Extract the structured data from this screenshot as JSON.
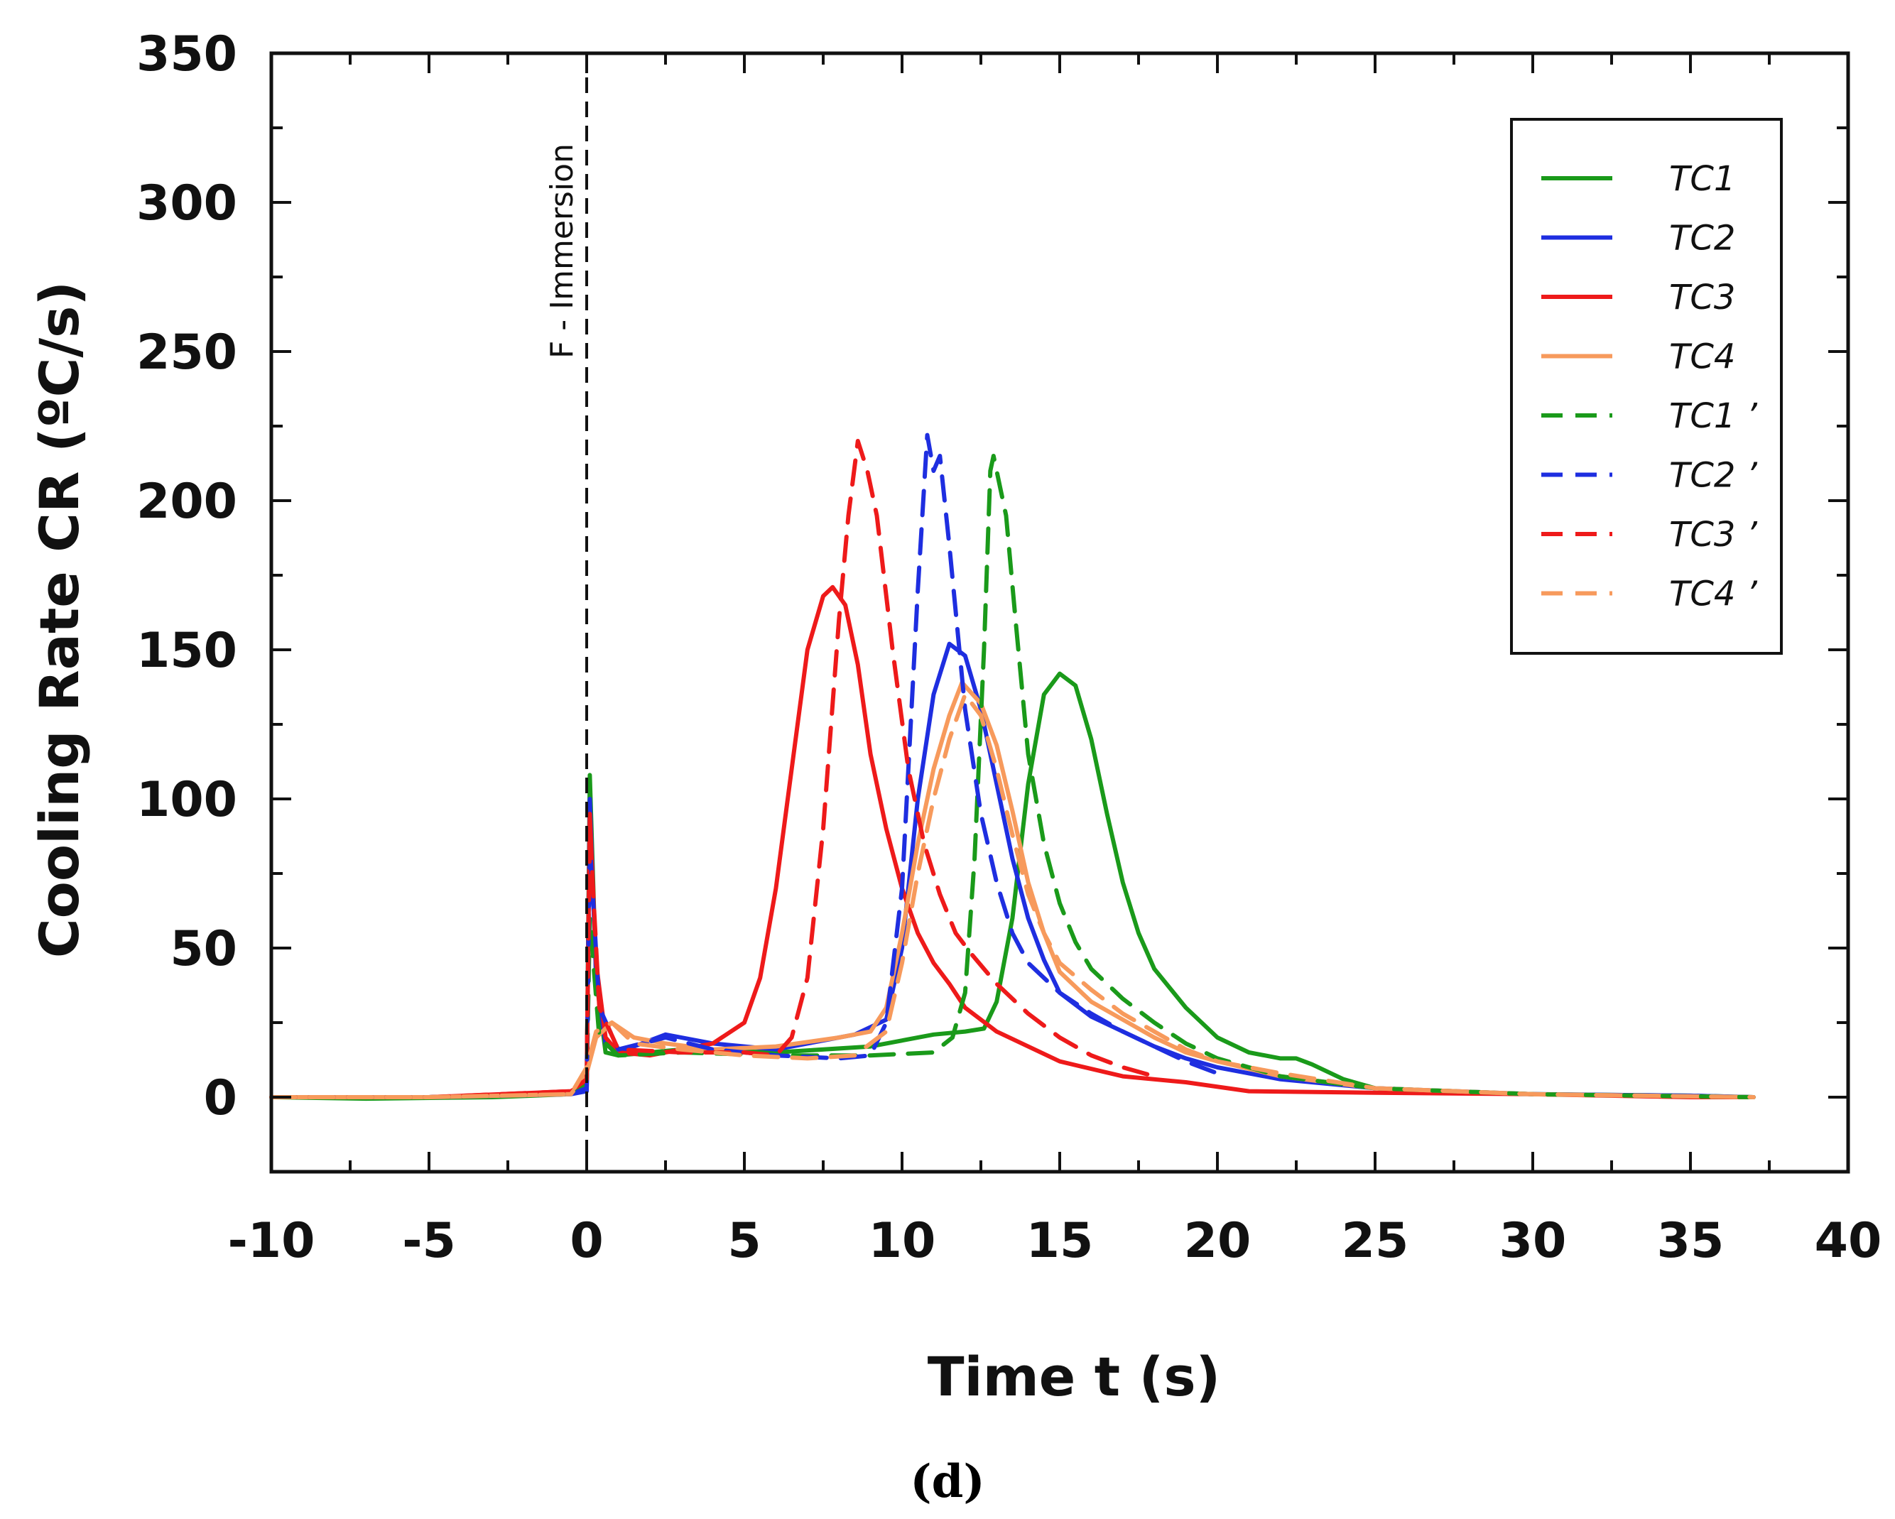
{
  "chart_data": {
    "type": "line",
    "title": "",
    "xlabel": "Time  t (s)",
    "ylabel": "Cooling Rate  CR (ºC/s)",
    "xlim": [
      -10,
      40
    ],
    "ylim": [
      -25,
      350
    ],
    "xticks": [
      -10,
      -5,
      0,
      5,
      10,
      15,
      20,
      25,
      30,
      35,
      40
    ],
    "xtick_labels": [
      "-10",
      "-5",
      "0",
      "5",
      "10",
      "15",
      "20",
      "25",
      "30",
      "35",
      "40"
    ],
    "yticks": [
      0,
      50,
      100,
      150,
      200,
      250,
      300,
      350
    ],
    "ytick_labels": [
      "0",
      "50",
      "100",
      "150",
      "200",
      "250",
      "300",
      "350"
    ],
    "legend_position": "top-right",
    "annotation": {
      "text": "F - Immersion",
      "x": 0
    },
    "panel_label": "(d)",
    "series": [
      {
        "name": "TC1",
        "color": "#1a9a1a",
        "style": "solid",
        "points": [
          [
            -10,
            0
          ],
          [
            -7,
            -0.5
          ],
          [
            -3,
            0
          ],
          [
            -0.5,
            1
          ],
          [
            0,
            3
          ],
          [
            0.1,
            108
          ],
          [
            0.3,
            40
          ],
          [
            0.6,
            15
          ],
          [
            1,
            14
          ],
          [
            3,
            16
          ],
          [
            6,
            15
          ],
          [
            9,
            17
          ],
          [
            11,
            21
          ],
          [
            12,
            22
          ],
          [
            12.6,
            23
          ],
          [
            13,
            32
          ],
          [
            13.5,
            60
          ],
          [
            14,
            105
          ],
          [
            14.5,
            135
          ],
          [
            15,
            142
          ],
          [
            15.5,
            138
          ],
          [
            16,
            120
          ],
          [
            16.5,
            95
          ],
          [
            17,
            72
          ],
          [
            17.5,
            55
          ],
          [
            18,
            43
          ],
          [
            19,
            30
          ],
          [
            20,
            20
          ],
          [
            21,
            15
          ],
          [
            22,
            13
          ],
          [
            22.5,
            13
          ],
          [
            23,
            11
          ],
          [
            24,
            6
          ],
          [
            25,
            3
          ],
          [
            27,
            2
          ],
          [
            30,
            1
          ],
          [
            35,
            0.5
          ],
          [
            37,
            0
          ]
        ]
      },
      {
        "name": "TC2",
        "color": "#1e2ee0",
        "style": "solid",
        "points": [
          [
            -10,
            0
          ],
          [
            -5,
            0
          ],
          [
            -0.5,
            1
          ],
          [
            0,
            2
          ],
          [
            0.1,
            100
          ],
          [
            0.3,
            40
          ],
          [
            0.6,
            18
          ],
          [
            1,
            15
          ],
          [
            2.5,
            21
          ],
          [
            4,
            18
          ],
          [
            6,
            16
          ],
          [
            7,
            18
          ],
          [
            8.5,
            21
          ],
          [
            9.5,
            26
          ],
          [
            10,
            50
          ],
          [
            10.5,
            100
          ],
          [
            11,
            135
          ],
          [
            11.5,
            152
          ],
          [
            12,
            148
          ],
          [
            12.5,
            130
          ],
          [
            13,
            105
          ],
          [
            13.5,
            80
          ],
          [
            14,
            60
          ],
          [
            14.5,
            46
          ],
          [
            15,
            35
          ],
          [
            16,
            27
          ],
          [
            17,
            22
          ],
          [
            18,
            17
          ],
          [
            19,
            13
          ],
          [
            20,
            10
          ],
          [
            22,
            6
          ],
          [
            25,
            3
          ],
          [
            30,
            1
          ],
          [
            35,
            0.5
          ],
          [
            37,
            0
          ]
        ]
      },
      {
        "name": "TC3",
        "color": "#ee1a1a",
        "style": "solid",
        "points": [
          [
            -10,
            0
          ],
          [
            -5,
            0
          ],
          [
            -0.5,
            2
          ],
          [
            0,
            5
          ],
          [
            0.1,
            95
          ],
          [
            0.3,
            45
          ],
          [
            0.6,
            20
          ],
          [
            1,
            15
          ],
          [
            2,
            14
          ],
          [
            4,
            18
          ],
          [
            5,
            25
          ],
          [
            5.5,
            40
          ],
          [
            6,
            70
          ],
          [
            6.5,
            110
          ],
          [
            7,
            150
          ],
          [
            7.5,
            168
          ],
          [
            7.8,
            171
          ],
          [
            8.2,
            165
          ],
          [
            8.6,
            145
          ],
          [
            9,
            115
          ],
          [
            9.5,
            90
          ],
          [
            10,
            70
          ],
          [
            10.5,
            55
          ],
          [
            11,
            45
          ],
          [
            11.5,
            38
          ],
          [
            12,
            30
          ],
          [
            13,
            22
          ],
          [
            14,
            17
          ],
          [
            15,
            12
          ],
          [
            17,
            7
          ],
          [
            19,
            5
          ],
          [
            21,
            2
          ],
          [
            25,
            1.5
          ],
          [
            30,
            1
          ],
          [
            35,
            0
          ],
          [
            37,
            0
          ]
        ]
      },
      {
        "name": "TC4",
        "color": "#f79a5c",
        "style": "solid",
        "points": [
          [
            -10,
            0
          ],
          [
            -5,
            0
          ],
          [
            -0.5,
            1
          ],
          [
            0,
            8
          ],
          [
            0.3,
            20
          ],
          [
            0.8,
            25
          ],
          [
            1.5,
            20
          ],
          [
            2.5,
            18
          ],
          [
            4,
            16
          ],
          [
            6,
            17
          ],
          [
            8,
            20
          ],
          [
            9,
            22
          ],
          [
            9.5,
            30
          ],
          [
            10,
            55
          ],
          [
            10.5,
            85
          ],
          [
            11,
            110
          ],
          [
            11.5,
            128
          ],
          [
            11.9,
            139
          ],
          [
            12.5,
            132
          ],
          [
            13,
            118
          ],
          [
            13.5,
            96
          ],
          [
            14,
            72
          ],
          [
            14.5,
            55
          ],
          [
            15,
            42
          ],
          [
            16,
            32
          ],
          [
            17,
            26
          ],
          [
            18,
            20
          ],
          [
            19,
            15
          ],
          [
            20,
            12
          ],
          [
            22,
            7
          ],
          [
            25,
            3
          ],
          [
            30,
            1
          ],
          [
            37,
            0
          ]
        ]
      },
      {
        "name": "TC1 ’",
        "color": "#1a9a1a",
        "style": "dashed",
        "points": [
          [
            -10,
            0
          ],
          [
            -5,
            0
          ],
          [
            -0.5,
            1
          ],
          [
            0,
            4
          ],
          [
            0.1,
            60
          ],
          [
            0.4,
            20
          ],
          [
            1,
            14
          ],
          [
            3,
            15
          ],
          [
            6,
            14
          ],
          [
            9,
            14
          ],
          [
            11,
            15
          ],
          [
            11.6,
            20
          ],
          [
            12,
            35
          ],
          [
            12.3,
            80
          ],
          [
            12.6,
            150
          ],
          [
            12.8,
            210
          ],
          [
            12.9,
            215
          ],
          [
            13.1,
            205
          ],
          [
            13.3,
            195
          ],
          [
            13.6,
            160
          ],
          [
            14,
            115
          ],
          [
            14.5,
            85
          ],
          [
            15,
            65
          ],
          [
            15.5,
            52
          ],
          [
            16,
            43
          ],
          [
            17,
            33
          ],
          [
            18,
            25
          ],
          [
            19,
            18
          ],
          [
            20,
            13
          ],
          [
            22,
            7
          ],
          [
            25,
            3
          ],
          [
            30,
            1
          ],
          [
            37,
            0
          ]
        ]
      },
      {
        "name": "TC2 ’",
        "color": "#1e2ee0",
        "style": "dashed",
        "points": [
          [
            -10,
            0
          ],
          [
            -5,
            0
          ],
          [
            -0.5,
            1
          ],
          [
            0,
            3
          ],
          [
            0.1,
            85
          ],
          [
            0.4,
            30
          ],
          [
            1,
            16
          ],
          [
            2.5,
            20
          ],
          [
            4,
            16
          ],
          [
            6,
            14
          ],
          [
            8,
            13
          ],
          [
            9,
            14
          ],
          [
            9.5,
            25
          ],
          [
            10,
            70
          ],
          [
            10.5,
            170
          ],
          [
            10.8,
            222
          ],
          [
            11,
            210
          ],
          [
            11.2,
            215
          ],
          [
            11.5,
            185
          ],
          [
            12,
            130
          ],
          [
            12.5,
            95
          ],
          [
            13,
            72
          ],
          [
            13.5,
            55
          ],
          [
            14,
            45
          ],
          [
            15,
            35
          ],
          [
            16,
            28
          ],
          [
            17,
            22
          ],
          [
            18,
            17
          ],
          [
            19,
            12
          ],
          [
            20,
            8
          ]
        ]
      },
      {
        "name": "TC3 ’",
        "color": "#ee1a1a",
        "style": "dashed",
        "points": [
          [
            -10,
            0
          ],
          [
            -5,
            0
          ],
          [
            -0.5,
            2
          ],
          [
            0,
            6
          ],
          [
            0.1,
            90
          ],
          [
            0.4,
            30
          ],
          [
            1,
            16
          ],
          [
            3,
            15
          ],
          [
            5,
            15
          ],
          [
            6,
            14
          ],
          [
            6.5,
            20
          ],
          [
            7,
            40
          ],
          [
            7.5,
            90
          ],
          [
            8,
            160
          ],
          [
            8.3,
            195
          ],
          [
            8.6,
            220
          ],
          [
            8.9,
            210
          ],
          [
            9.2,
            195
          ],
          [
            9.7,
            150
          ],
          [
            10.2,
            110
          ],
          [
            10.7,
            85
          ],
          [
            11.2,
            68
          ],
          [
            11.7,
            55
          ],
          [
            12.2,
            48
          ],
          [
            13,
            38
          ],
          [
            14,
            28
          ],
          [
            15,
            20
          ],
          [
            16,
            14
          ],
          [
            17,
            10
          ],
          [
            18,
            7
          ]
        ]
      },
      {
        "name": "TC4 ’",
        "color": "#f79a5c",
        "style": "dashed",
        "points": [
          [
            -10,
            0
          ],
          [
            -5,
            0
          ],
          [
            -0.5,
            1
          ],
          [
            0,
            10
          ],
          [
            0.3,
            22
          ],
          [
            0.8,
            25
          ],
          [
            1.5,
            18
          ],
          [
            3,
            16
          ],
          [
            5,
            14
          ],
          [
            7,
            13
          ],
          [
            8.5,
            14
          ],
          [
            9.5,
            22
          ],
          [
            10,
            45
          ],
          [
            10.5,
            75
          ],
          [
            11,
            100
          ],
          [
            11.5,
            120
          ],
          [
            12,
            135
          ],
          [
            12.5,
            128
          ],
          [
            13,
            110
          ],
          [
            13.5,
            88
          ],
          [
            14,
            68
          ],
          [
            14.5,
            55
          ],
          [
            15,
            45
          ],
          [
            16,
            36
          ],
          [
            17,
            28
          ],
          [
            18,
            22
          ],
          [
            19,
            16
          ],
          [
            20,
            12
          ],
          [
            22,
            8
          ],
          [
            25,
            3
          ],
          [
            30,
            1
          ],
          [
            37,
            0
          ]
        ]
      }
    ]
  }
}
